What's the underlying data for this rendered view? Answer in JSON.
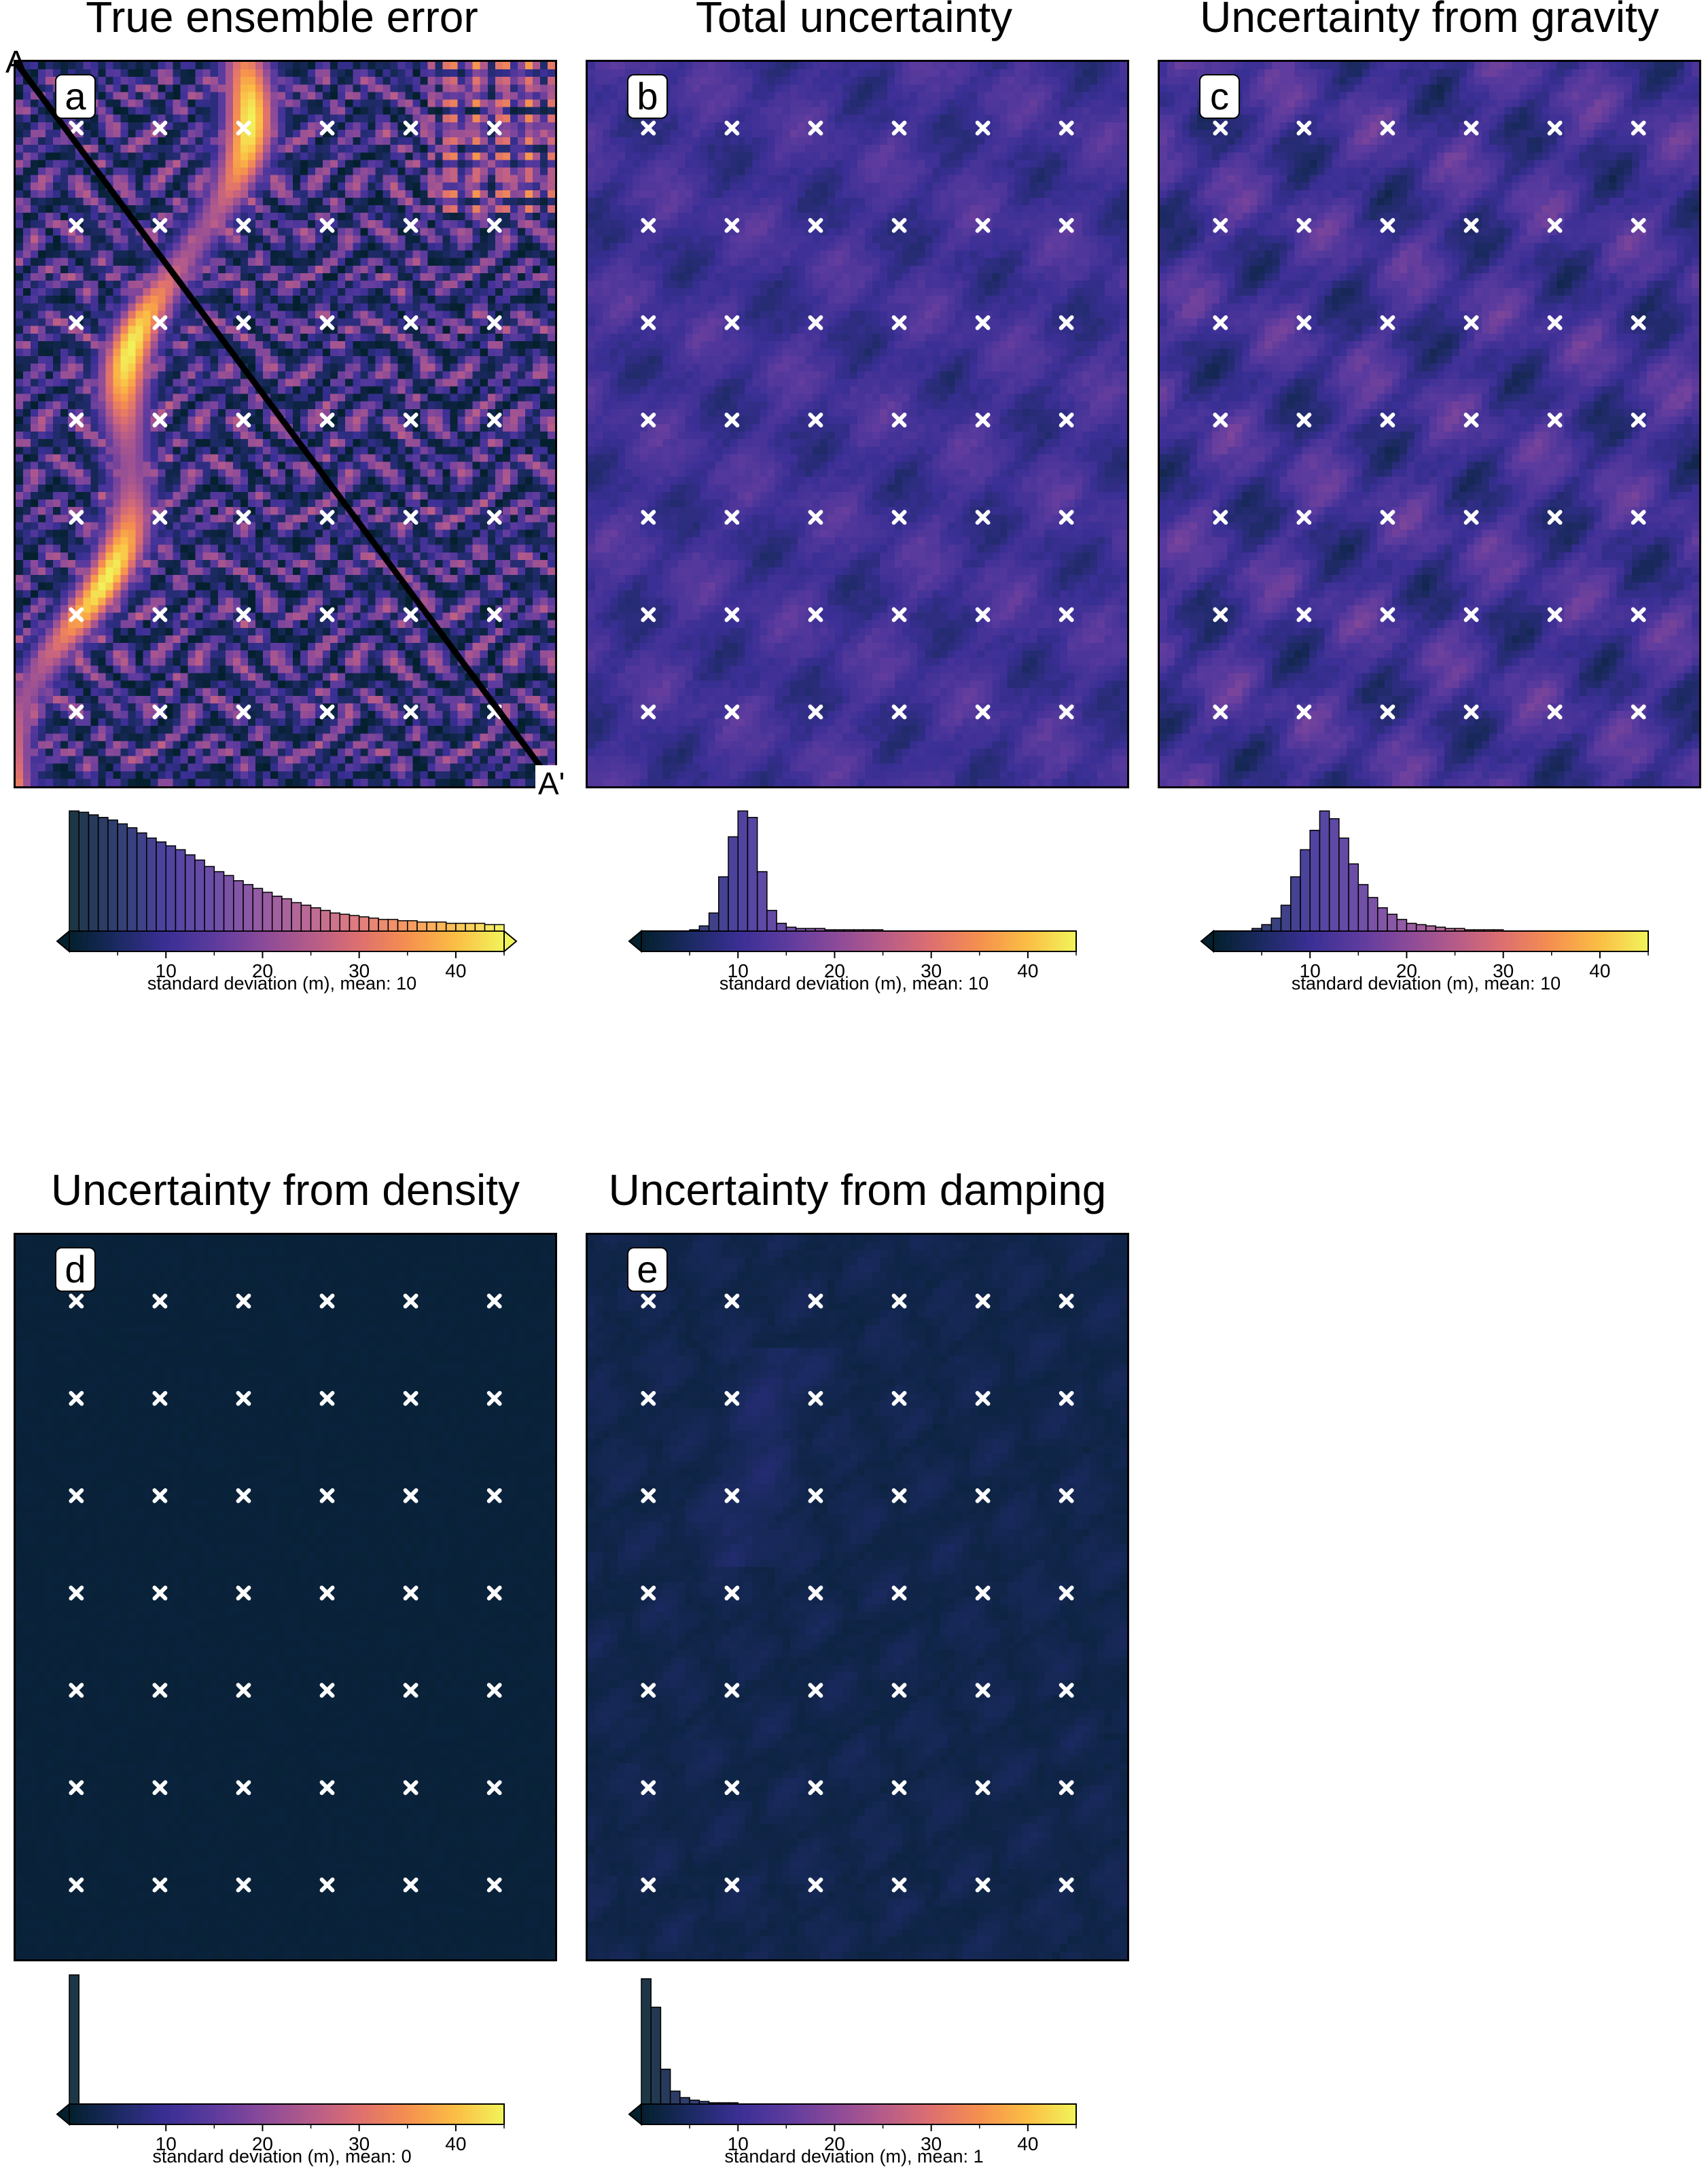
{
  "colormap": {
    "name": "thermal",
    "stops": [
      "#04202e",
      "#1c2a63",
      "#3a2f95",
      "#5d3b9e",
      "#8a4a99",
      "#b55b8a",
      "#dd6f70",
      "#f58f4f",
      "#fbbd45",
      "#f1f35a"
    ],
    "range": [
      0,
      45
    ],
    "ticks": [
      10,
      20,
      30,
      40
    ],
    "tick_labels": [
      "10",
      "20",
      "30",
      "40"
    ]
  },
  "profile": {
    "start_label": "A",
    "end_label": "A'"
  },
  "chart_data": [
    {
      "type": "heatmap",
      "panel": "a",
      "title": "True ensemble error",
      "field": "error",
      "colorbar_label": "standard deviation (m), mean: 10",
      "histogram": [
        0.93,
        0.92,
        0.9,
        0.88,
        0.86,
        0.83,
        0.8,
        0.76,
        0.72,
        0.69,
        0.66,
        0.63,
        0.59,
        0.55,
        0.5,
        0.46,
        0.43,
        0.39,
        0.36,
        0.33,
        0.3,
        0.27,
        0.25,
        0.22,
        0.2,
        0.18,
        0.16,
        0.14,
        0.13,
        0.12,
        0.11,
        0.1,
        0.09,
        0.09,
        0.08,
        0.08,
        0.07,
        0.07,
        0.07,
        0.06,
        0.06,
        0.06,
        0.06,
        0.05,
        0.05
      ]
    },
    {
      "type": "heatmap",
      "panel": "b",
      "title": "Total uncertainty",
      "field": "total",
      "colorbar_label": "standard deviation (m), mean: 10",
      "histogram": [
        0,
        0,
        0,
        0,
        0,
        0.01,
        0.04,
        0.14,
        0.42,
        0.73,
        0.93,
        0.88,
        0.46,
        0.16,
        0.06,
        0.03,
        0.02,
        0.02,
        0.02,
        0.01,
        0.01,
        0.01,
        0.01,
        0.01,
        0.01,
        0,
        0,
        0,
        0,
        0,
        0,
        0,
        0,
        0,
        0,
        0,
        0,
        0,
        0,
        0,
        0,
        0,
        0,
        0,
        0
      ]
    },
    {
      "type": "heatmap",
      "panel": "c",
      "title": "Uncertainty from gravity",
      "field": "gravity",
      "colorbar_label": "standard deviation (m), mean: 10",
      "histogram": [
        0,
        0,
        0,
        0,
        0.02,
        0.05,
        0.1,
        0.2,
        0.42,
        0.63,
        0.78,
        0.93,
        0.87,
        0.72,
        0.52,
        0.36,
        0.26,
        0.18,
        0.13,
        0.09,
        0.06,
        0.05,
        0.04,
        0.03,
        0.02,
        0.02,
        0.01,
        0.01,
        0.01,
        0.01,
        0,
        0,
        0,
        0,
        0,
        0,
        0,
        0,
        0,
        0,
        0,
        0,
        0,
        0,
        0
      ]
    },
    {
      "type": "heatmap",
      "panel": "d",
      "title": "Uncertainty from density",
      "field": "density",
      "colorbar_label": "standard deviation (m), mean: 0",
      "histogram": [
        1.0,
        0,
        0,
        0,
        0,
        0,
        0,
        0,
        0,
        0,
        0,
        0,
        0,
        0,
        0,
        0,
        0,
        0,
        0,
        0,
        0,
        0,
        0,
        0,
        0,
        0,
        0,
        0,
        0,
        0,
        0,
        0,
        0,
        0,
        0,
        0,
        0,
        0,
        0,
        0,
        0,
        0,
        0,
        0,
        0
      ]
    },
    {
      "type": "heatmap",
      "panel": "e",
      "title": "Uncertainty from damping",
      "field": "damping",
      "colorbar_label": "standard deviation (m), mean: 1",
      "histogram": [
        0.97,
        0.75,
        0.27,
        0.1,
        0.05,
        0.03,
        0.02,
        0.01,
        0.01,
        0.01,
        0,
        0,
        0,
        0,
        0,
        0,
        0,
        0,
        0,
        0,
        0,
        0,
        0,
        0,
        0,
        0,
        0,
        0,
        0,
        0,
        0,
        0,
        0,
        0,
        0,
        0,
        0,
        0,
        0,
        0,
        0,
        0,
        0,
        0,
        0
      ]
    }
  ]
}
